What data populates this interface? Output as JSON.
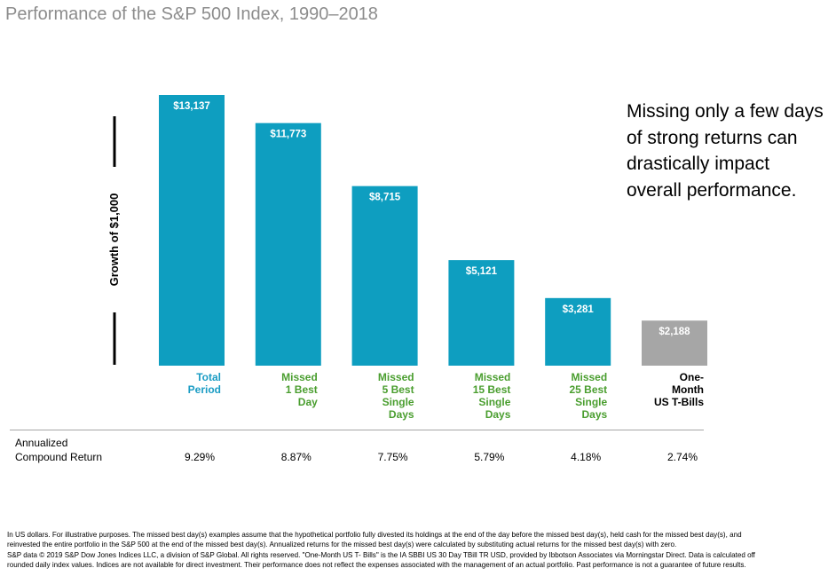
{
  "title": "Performance of the S&P 500 Index, 1990–2018",
  "annotation": [
    "Missing only a few days",
    "of strong returns can",
    "drastically impact",
    "overall performance."
  ],
  "chart_data": {
    "type": "bar",
    "ylabel": "Growth of $1,000",
    "categories": [
      [
        "Total",
        "Period"
      ],
      [
        "Missed",
        "1 Best",
        "Day"
      ],
      [
        "Missed",
        "5 Best",
        "Single",
        "Days"
      ],
      [
        "Missed",
        "15 Best",
        "Single",
        "Days"
      ],
      [
        "Missed",
        "25 Best",
        "Single",
        "Days"
      ],
      [
        "One-",
        "Month",
        "US T-Bills"
      ]
    ],
    "values": [
      13137,
      11773,
      8715,
      5121,
      3281,
      2188
    ],
    "value_labels": [
      "$13,137",
      "$11,773",
      "$8,715",
      "$5,121",
      "$3,281",
      "$2,188"
    ],
    "bar_colors": [
      "#0e9ec0",
      "#0e9ec0",
      "#0e9ec0",
      "#0e9ec0",
      "#0e9ec0",
      "#a6a6a6"
    ],
    "label_colors": [
      "#1a9cc4",
      "#4a9e2f",
      "#4a9e2f",
      "#4a9e2f",
      "#4a9e2f",
      "#000000"
    ],
    "ylim": [
      0,
      14000
    ],
    "axis_break": true,
    "grid": false
  },
  "returns": {
    "label": [
      "Annualized",
      "Compound Return"
    ],
    "values": [
      "9.29%",
      "8.87%",
      "7.75%",
      "5.79%",
      "4.18%",
      "2.74%"
    ]
  },
  "footnote": [
    "In US dollars. For illustrative purposes. The missed best day(s) examples assume that the hypothetical portfolio fully divested its holdings at the end of the day before the missed best day(s), held cash for the missed best day(s), and",
    "reinvested the entire portfolio in the S&P 500 at the end of the missed best day(s). Annualized returns for the missed best day(s) were calculated by substituting actual returns for the missed best day(s) with zero.",
    "S&P data © 2019 S&P Dow Jones Indices LLC, a division of S&P Global. All rights reserved. \"One-Month US T- Bills\" is the IA SBBI US 30 Day TBill TR USD, provided by Ibbotson Associates via Morningstar Direct. Data is calculated off",
    "rounded daily index values. Indices are not available for direct investment. Their performance does not reflect the expenses associated with the management of an actual portfolio. Past performance is not a guarantee of future results."
  ]
}
